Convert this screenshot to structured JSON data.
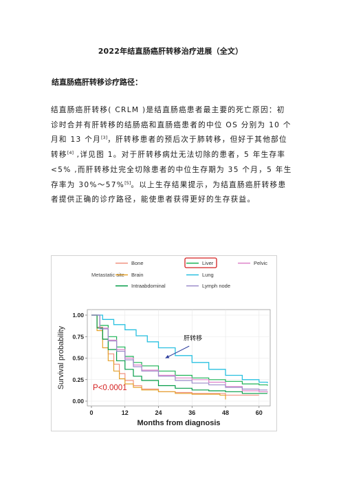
{
  "doc": {
    "title": "2022年结直肠癌肝转移治疗进展（全文）",
    "section_heading": "结直肠癌肝转移诊疗路径：",
    "paragraph": {
      "t1": "结直肠癌肝转移( CRLM )是结直肠癌患者最主要的死亡原因：初诊时合并有肝转移的结肠癌和直肠癌患者的中位 OS 分别为 10 个月和 13 个月",
      "ref1": "[3]",
      "t2": "，肝转移患者的预后次于肺转移，但好于其他部位转移",
      "ref2": "[4]",
      "t3": " ,详见图 1。对于肝转移病灶无法切除的患者，5 年生存率<5% ,而肝转移灶完全切除患者的中位生存期为 35 个月，5 年生存率为 30%～57%",
      "ref3": "[5]",
      "t4": "。以上生存结果提示，为结直肠癌肝转移患者提供正确的诊疗路径，能使患者获得更好的生存获益。"
    }
  },
  "chart_data": {
    "type": "line",
    "title": "",
    "xlabel": "Months from diagnosis",
    "ylabel": "Survival probability",
    "xlim": [
      0,
      63
    ],
    "ylim": [
      0,
      1
    ],
    "x_ticks": [
      0,
      12,
      24,
      36,
      48,
      60
    ],
    "y_ticks": [
      "0.00",
      "0.25",
      "0.50",
      "0.75",
      "1.00"
    ],
    "legend_title": "Metastatic site",
    "legend_position": "top",
    "pvalue_label": "P<0.0001",
    "annotation": "肝转移",
    "highlight": "Liver",
    "series": [
      {
        "name": "Bone",
        "color": "#f0907e",
        "points": [
          [
            0,
            1
          ],
          [
            2,
            0.86
          ],
          [
            4,
            0.72
          ],
          [
            6,
            0.55
          ],
          [
            8,
            0.43
          ],
          [
            10,
            0.32
          ],
          [
            12,
            0.24
          ],
          [
            15,
            0.18
          ],
          [
            18,
            0.14
          ],
          [
            24,
            0.11
          ],
          [
            30,
            0.1
          ],
          [
            36,
            0.09
          ],
          [
            48,
            0.07
          ],
          [
            60,
            0.07
          ]
        ]
      },
      {
        "name": "Liver",
        "color": "#19b253",
        "points": [
          [
            0,
            1
          ],
          [
            3,
            0.88
          ],
          [
            6,
            0.75
          ],
          [
            9,
            0.63
          ],
          [
            12,
            0.52
          ],
          [
            15,
            0.45
          ],
          [
            18,
            0.41
          ],
          [
            24,
            0.35
          ],
          [
            30,
            0.3
          ],
          [
            36,
            0.27
          ],
          [
            42,
            0.25
          ],
          [
            48,
            0.23
          ],
          [
            54,
            0.2
          ],
          [
            60,
            0.19
          ],
          [
            63,
            0.18
          ]
        ]
      },
      {
        "name": "Pelvic",
        "color": "#dd80c8",
        "points": [
          [
            0,
            1
          ],
          [
            3,
            0.85
          ],
          [
            6,
            0.71
          ],
          [
            9,
            0.6
          ],
          [
            12,
            0.5
          ],
          [
            15,
            0.42
          ],
          [
            18,
            0.36
          ],
          [
            24,
            0.3
          ],
          [
            30,
            0.27
          ],
          [
            36,
            0.25
          ],
          [
            42,
            0.22
          ],
          [
            48,
            0.17
          ],
          [
            54,
            0.12
          ],
          [
            60,
            0.11
          ],
          [
            63,
            0.1
          ]
        ]
      },
      {
        "name": "Brain",
        "color": "#e4a12a",
        "points": [
          [
            0,
            1
          ],
          [
            2,
            0.82
          ],
          [
            4,
            0.62
          ],
          [
            6,
            0.47
          ],
          [
            8,
            0.35
          ],
          [
            10,
            0.26
          ],
          [
            12,
            0.2
          ],
          [
            15,
            0.16
          ],
          [
            18,
            0.13
          ],
          [
            24,
            0.11
          ],
          [
            30,
            0.09
          ],
          [
            36,
            0.08
          ],
          [
            42,
            0.08
          ],
          [
            46,
            0.07
          ],
          [
            48,
            0.02
          ]
        ]
      },
      {
        "name": "Lung",
        "color": "#28c0e0",
        "points": [
          [
            0,
            1
          ],
          [
            4,
            0.95
          ],
          [
            8,
            0.89
          ],
          [
            12,
            0.83
          ],
          [
            16,
            0.76
          ],
          [
            20,
            0.69
          ],
          [
            24,
            0.62
          ],
          [
            30,
            0.53
          ],
          [
            36,
            0.45
          ],
          [
            42,
            0.37
          ],
          [
            48,
            0.3
          ],
          [
            54,
            0.25
          ],
          [
            60,
            0.22
          ],
          [
            63,
            0.21
          ]
        ]
      },
      {
        "name": "Intraabdominal",
        "color": "#009b45",
        "points": [
          [
            0,
            1
          ],
          [
            2,
            0.85
          ],
          [
            4,
            0.72
          ],
          [
            6,
            0.6
          ],
          [
            9,
            0.47
          ],
          [
            12,
            0.37
          ],
          [
            15,
            0.29
          ],
          [
            18,
            0.24
          ],
          [
            24,
            0.18
          ],
          [
            30,
            0.15
          ],
          [
            36,
            0.13
          ],
          [
            42,
            0.12
          ],
          [
            48,
            0.11
          ],
          [
            54,
            0.09
          ],
          [
            60,
            0.09
          ],
          [
            63,
            0.09
          ]
        ]
      },
      {
        "name": "Lymph node",
        "color": "#9a8ac9",
        "points": [
          [
            0,
            1
          ],
          [
            3,
            0.84
          ],
          [
            6,
            0.7
          ],
          [
            9,
            0.58
          ],
          [
            12,
            0.48
          ],
          [
            15,
            0.4
          ],
          [
            18,
            0.35
          ],
          [
            24,
            0.29
          ],
          [
            30,
            0.24
          ],
          [
            36,
            0.21
          ],
          [
            42,
            0.19
          ],
          [
            48,
            0.16
          ],
          [
            54,
            0.14
          ],
          [
            60,
            0.13
          ],
          [
            63,
            0.13
          ]
        ]
      }
    ]
  }
}
